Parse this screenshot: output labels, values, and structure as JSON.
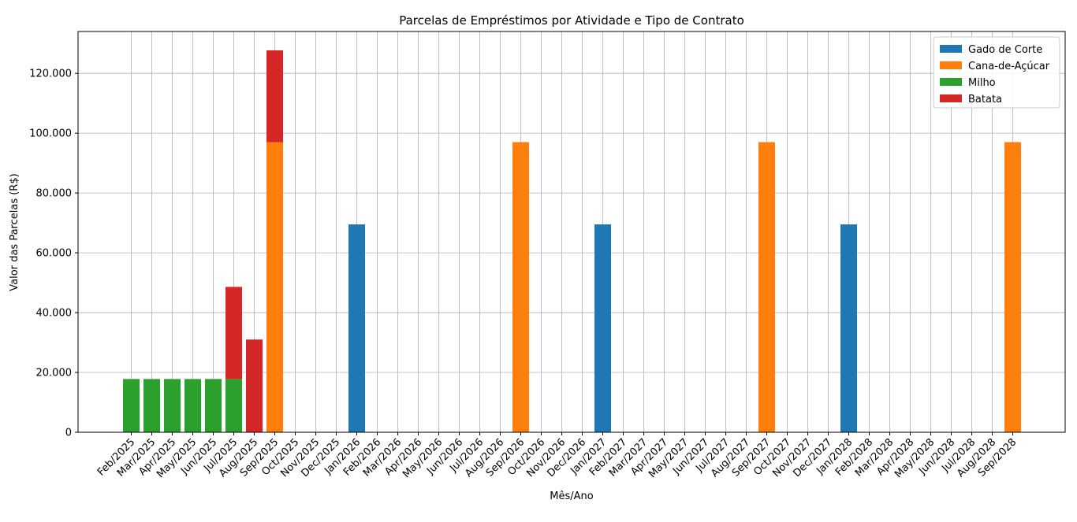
{
  "chart_data": {
    "type": "bar",
    "stacked": true,
    "title": "Parcelas de Empréstimos por Atividade e Tipo de Contrato",
    "xlabel": "Mês/Ano",
    "ylabel": "Valor das Parcelas (R$)",
    "ylim": [
      0,
      134000
    ],
    "yticks": [
      0,
      20000,
      40000,
      60000,
      80000,
      100000,
      120000
    ],
    "ytick_labels": [
      "0",
      "20.000",
      "40.000",
      "60.000",
      "80.000",
      "100.000",
      "120.000"
    ],
    "grid": true,
    "legend_position": "top-right",
    "categories": [
      "Feb/2025",
      "Mar/2025",
      "Apr/2025",
      "May/2025",
      "Jun/2025",
      "Jul/2025",
      "Aug/2025",
      "Sep/2025",
      "Oct/2025",
      "Nov/2025",
      "Dec/2025",
      "Jan/2026",
      "Feb/2026",
      "Mar/2026",
      "Apr/2026",
      "May/2026",
      "Jun/2026",
      "Jul/2026",
      "Aug/2026",
      "Sep/2026",
      "Oct/2026",
      "Nov/2026",
      "Dec/2026",
      "Jan/2027",
      "Feb/2027",
      "Mar/2027",
      "Apr/2027",
      "May/2027",
      "Jun/2027",
      "Jul/2027",
      "Aug/2027",
      "Sep/2027",
      "Oct/2027",
      "Nov/2027",
      "Dec/2027",
      "Jan/2028",
      "Feb/2028",
      "Mar/2028",
      "Apr/2028",
      "May/2028",
      "Jun/2028",
      "Jul/2028",
      "Aug/2028",
      "Sep/2028"
    ],
    "series": [
      {
        "name": "Gado de Corte",
        "color": "#1f77b4",
        "values": [
          0,
          0,
          0,
          0,
          0,
          0,
          0,
          0,
          0,
          0,
          0,
          69500,
          0,
          0,
          0,
          0,
          0,
          0,
          0,
          0,
          0,
          0,
          0,
          69500,
          0,
          0,
          0,
          0,
          0,
          0,
          0,
          0,
          0,
          0,
          0,
          69500,
          0,
          0,
          0,
          0,
          0,
          0,
          0,
          0
        ]
      },
      {
        "name": "Cana-de-Açúcar",
        "color": "#ff7f0e",
        "values": [
          0,
          0,
          0,
          0,
          0,
          0,
          0,
          97000,
          0,
          0,
          0,
          0,
          0,
          0,
          0,
          0,
          0,
          0,
          0,
          97000,
          0,
          0,
          0,
          0,
          0,
          0,
          0,
          0,
          0,
          0,
          0,
          97000,
          0,
          0,
          0,
          0,
          0,
          0,
          0,
          0,
          0,
          0,
          0,
          97000
        ]
      },
      {
        "name": "Milho",
        "color": "#2ca02c",
        "values": [
          17800,
          17800,
          17800,
          17800,
          17800,
          17800,
          0,
          0,
          0,
          0,
          0,
          0,
          0,
          0,
          0,
          0,
          0,
          0,
          0,
          0,
          0,
          0,
          0,
          0,
          0,
          0,
          0,
          0,
          0,
          0,
          0,
          0,
          0,
          0,
          0,
          0,
          0,
          0,
          0,
          0,
          0,
          0,
          0,
          0
        ]
      },
      {
        "name": "Batata",
        "color": "#d62728",
        "values": [
          0,
          0,
          0,
          0,
          0,
          30800,
          31000,
          30700,
          0,
          0,
          0,
          0,
          0,
          0,
          0,
          0,
          0,
          0,
          0,
          0,
          0,
          0,
          0,
          0,
          0,
          0,
          0,
          0,
          0,
          0,
          0,
          0,
          0,
          0,
          0,
          0,
          0,
          0,
          0,
          0,
          0,
          0,
          0,
          0
        ]
      }
    ]
  }
}
